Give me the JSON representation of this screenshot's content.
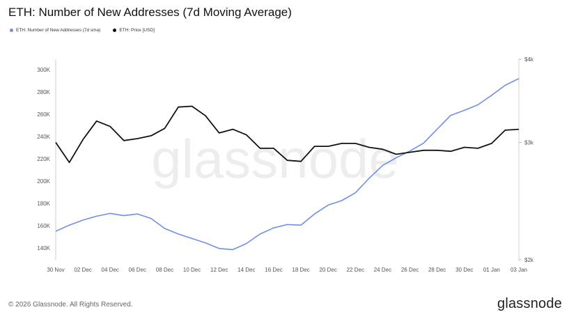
{
  "header": {
    "title": "ETH: Number of New Addresses (7d Moving Average)"
  },
  "legend": [
    {
      "label": "ETH: Number of New Addresses (7d sma)",
      "color": "#6f8fe6"
    },
    {
      "label": "ETH: Price [USD]",
      "color": "#111111"
    }
  ],
  "watermark": "glassnode",
  "footer": {
    "copyright": "© 2026 Glassnode. All Rights Reserved.",
    "brand": "glassnode"
  },
  "chart_data": {
    "type": "line",
    "title": "ETH: Number of New Addresses (7d Moving Average)",
    "x": [
      "30 Nov",
      "01 Dec",
      "02 Dec",
      "03 Dec",
      "04 Dec",
      "05 Dec",
      "06 Dec",
      "07 Dec",
      "08 Dec",
      "09 Dec",
      "10 Dec",
      "11 Dec",
      "12 Dec",
      "13 Dec",
      "14 Dec",
      "15 Dec",
      "16 Dec",
      "17 Dec",
      "18 Dec",
      "19 Dec",
      "20 Dec",
      "21 Dec",
      "22 Dec",
      "23 Dec",
      "24 Dec",
      "25 Dec",
      "26 Dec",
      "27 Dec",
      "28 Dec",
      "29 Dec",
      "30 Dec",
      "31 Dec",
      "01 Jan",
      "02 Jan",
      "03 Jan"
    ],
    "x_tick_labels": [
      "30 Nov",
      "02 Dec",
      "04 Dec",
      "06 Dec",
      "08 Dec",
      "10 Dec",
      "12 Dec",
      "14 Dec",
      "16 Dec",
      "18 Dec",
      "20 Dec",
      "22 Dec",
      "24 Dec",
      "26 Dec",
      "28 Dec",
      "30 Dec",
      "01 Jan",
      "03 Jan"
    ],
    "left_axis": {
      "ylim": [
        130000,
        310000
      ],
      "ticks": [
        140000,
        160000,
        180000,
        200000,
        220000,
        240000,
        260000,
        280000,
        300000
      ],
      "tick_labels": [
        "140K",
        "160K",
        "180K",
        "200K",
        "220K",
        "240K",
        "260K",
        "280K",
        "300K"
      ]
    },
    "right_axis": {
      "ylim": [
        2000,
        4000
      ],
      "ticks": [
        2000,
        3000,
        4000
      ],
      "tick_labels": [
        "$2k",
        "$3k",
        "$4k"
      ],
      "scale": "log"
    },
    "grid": false,
    "legend_position": "top-left",
    "series": [
      {
        "name": "ETH: Number of New Addresses (7d sma)",
        "axis": "left",
        "color": "#6f8fe6",
        "values": [
          155000,
          160500,
          165000,
          168500,
          171000,
          169000,
          170500,
          166500,
          157500,
          152500,
          148500,
          144500,
          139500,
          138500,
          144000,
          152500,
          158000,
          161000,
          160500,
          170500,
          178500,
          182500,
          189500,
          202500,
          214000,
          221000,
          227000,
          234000,
          246500,
          259000,
          263500,
          268500,
          277000,
          286000,
          292000
        ]
      },
      {
        "name": "ETH: Price [USD]",
        "axis": "right",
        "color": "#111111",
        "values": [
          3000,
          2800,
          3030,
          3230,
          3170,
          3020,
          3040,
          3070,
          3150,
          3390,
          3400,
          3290,
          3100,
          3140,
          3080,
          2940,
          2940,
          2820,
          2810,
          2960,
          2960,
          2990,
          2990,
          2950,
          2930,
          2880,
          2900,
          2920,
          2920,
          2910,
          2950,
          2940,
          2990,
          3130,
          3140
        ]
      }
    ]
  }
}
